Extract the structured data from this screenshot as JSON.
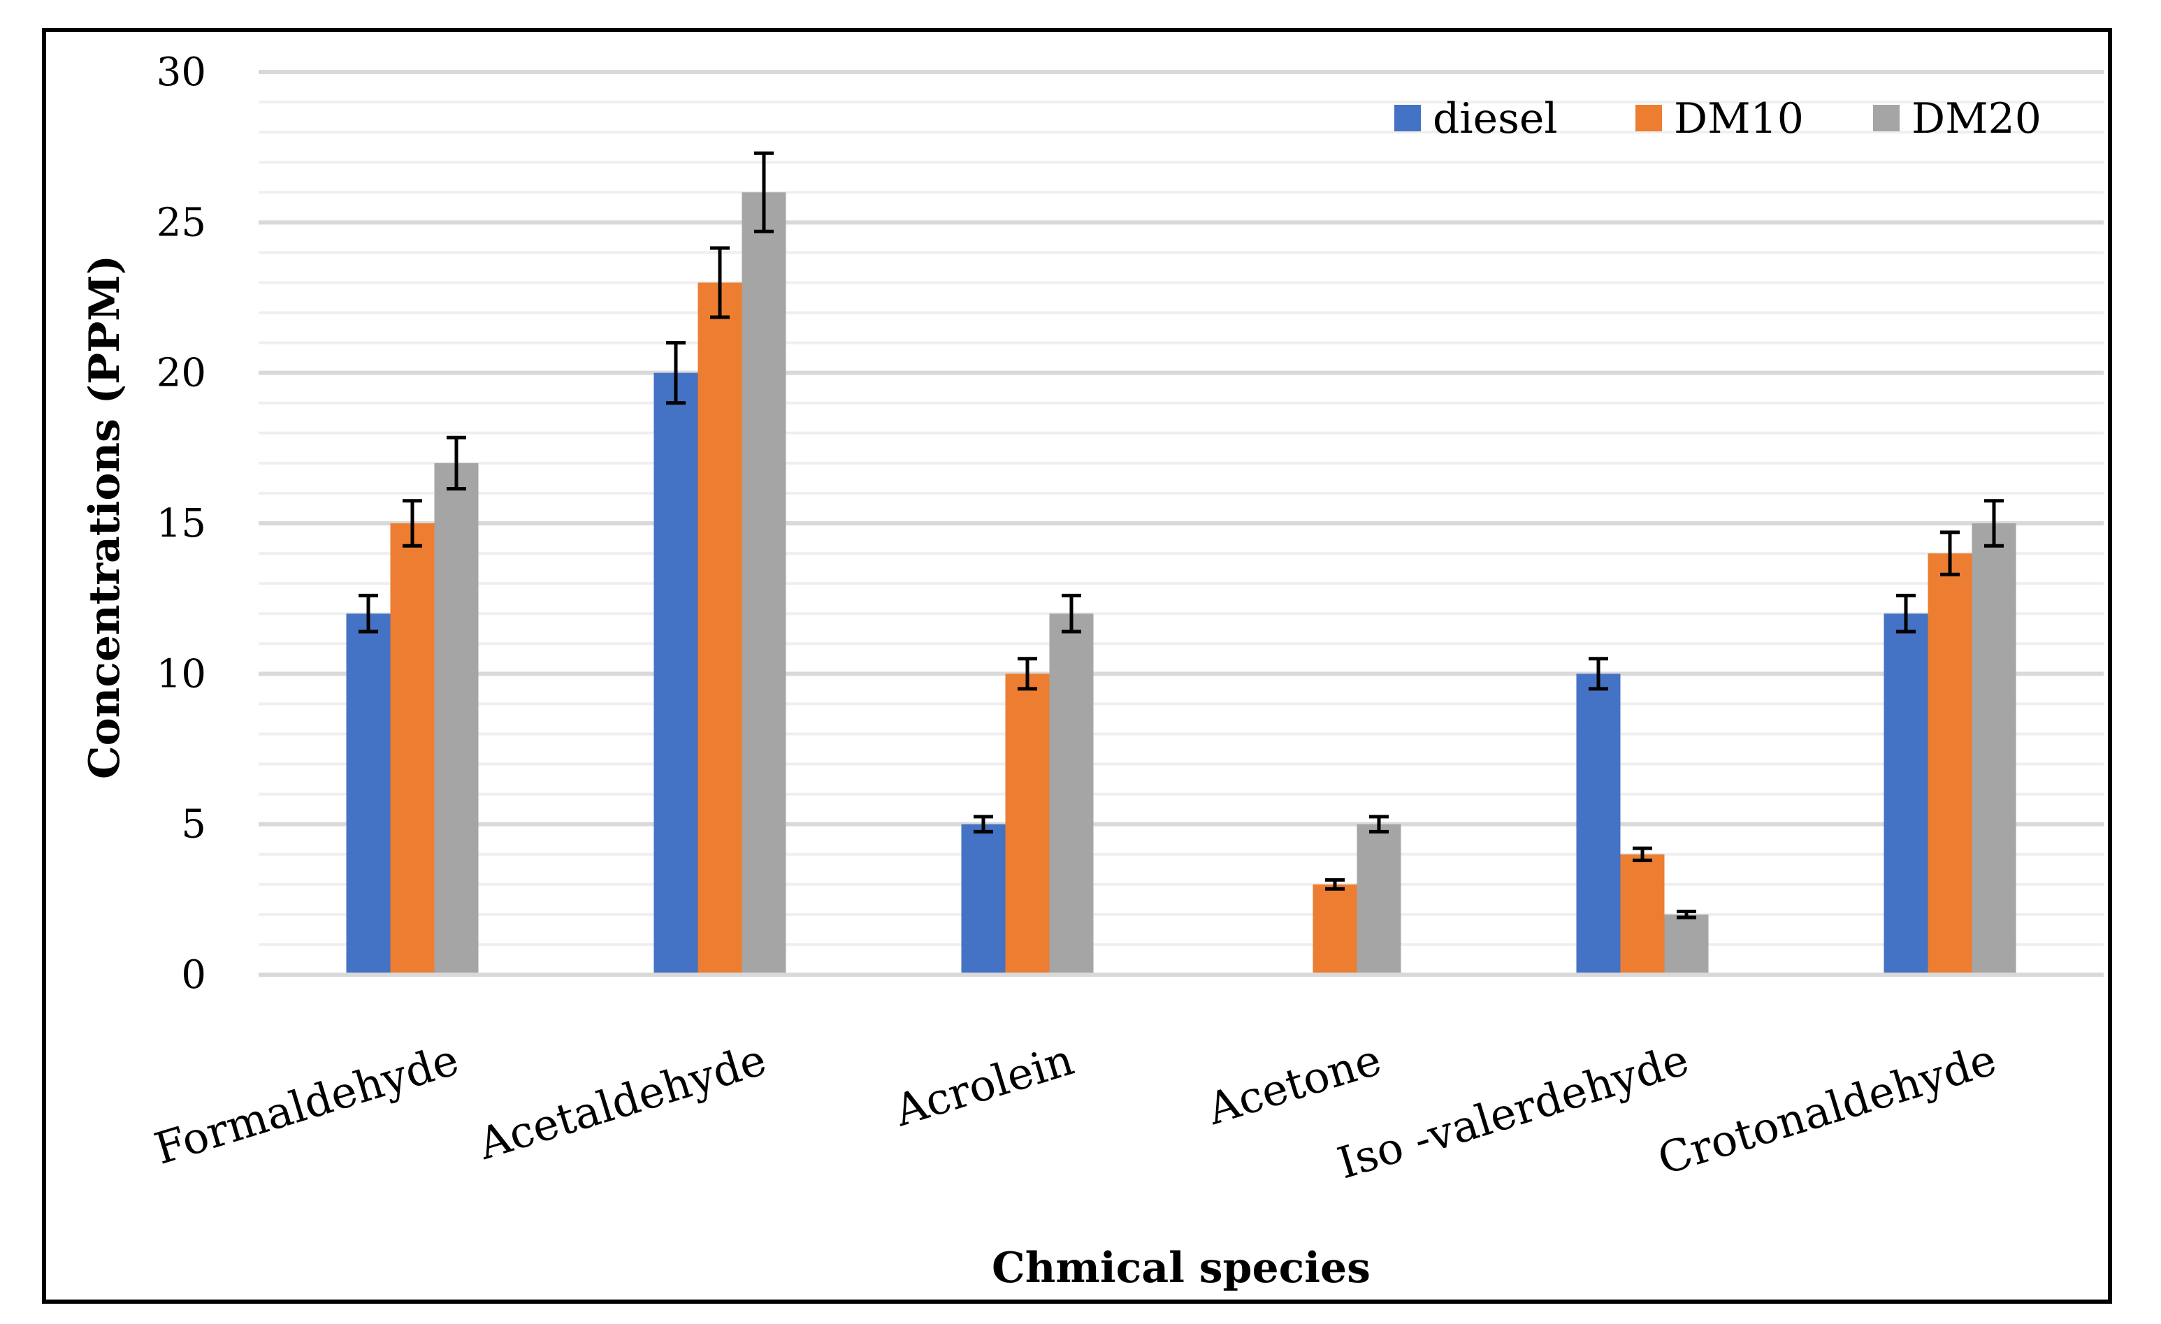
{
  "chart_data": {
    "type": "bar",
    "title": "",
    "xlabel": "Chmical species",
    "ylabel": "Concentrations (PPM)",
    "ylim": [
      0,
      30
    ],
    "yticks": [
      0,
      5,
      10,
      15,
      20,
      25,
      30
    ],
    "categories": [
      "Formaldehyde",
      "Acetaldehyde",
      "Acrolein",
      "Acetone",
      "Iso -valerdehyde",
      "Crotonaldehyde"
    ],
    "series": [
      {
        "name": "diesel",
        "color": "#4472C4",
        "values": [
          12,
          20,
          5,
          0,
          10,
          12
        ],
        "errors": [
          0.6,
          1.0,
          0.25,
          0,
          0.5,
          0.6
        ]
      },
      {
        "name": "DM10",
        "color": "#ED7D31",
        "values": [
          15,
          23,
          10,
          3,
          4,
          14
        ],
        "errors": [
          0.75,
          1.15,
          0.5,
          0.15,
          0.2,
          0.7
        ]
      },
      {
        "name": "DM20",
        "color": "#A5A5A5",
        "values": [
          17,
          26,
          12,
          5,
          2,
          15
        ],
        "errors": [
          0.85,
          1.3,
          0.6,
          0.25,
          0.1,
          0.75
        ]
      }
    ],
    "grid": true,
    "legend_position": "top-right"
  }
}
